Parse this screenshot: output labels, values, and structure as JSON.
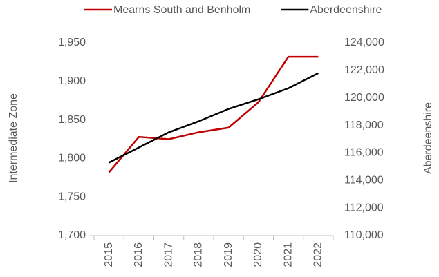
{
  "chart_data": {
    "type": "line",
    "y_label": "Intermediate Zone",
    "y2_label": "Aberdeenshire",
    "categories": [
      "2015",
      "2016",
      "2017",
      "2018",
      "2019",
      "2020",
      "2021",
      "2022"
    ],
    "series": [
      {
        "name": "Mearns South and Benholm",
        "color": "#c00000",
        "values": [
          1782,
          1828,
          1825,
          1834,
          1840,
          1873,
          1932,
          1932
        ]
      },
      {
        "name": "Aberdeenshire",
        "color": "#000000",
        "axis": "y2",
        "values": [
          115300,
          116400,
          117500,
          118300,
          119200,
          119900,
          120700,
          121800
        ]
      }
    ],
    "ylim": [
      1700,
      1950
    ],
    "yticks": [
      {
        "value": 1700,
        "label": "1,700"
      },
      {
        "value": 1750,
        "label": "1,750"
      },
      {
        "value": 1800,
        "label": "1,800"
      },
      {
        "value": 1850,
        "label": "1,850"
      },
      {
        "value": 1900,
        "label": "1,900"
      },
      {
        "value": 1950,
        "label": "1,950"
      }
    ],
    "y2lim": [
      110000,
      124000
    ],
    "y2ticks": [
      {
        "value": 110000,
        "label": "110,000"
      },
      {
        "value": 112000,
        "label": "112,000"
      },
      {
        "value": 114000,
        "label": "114,000"
      },
      {
        "value": 116000,
        "label": "116,000"
      },
      {
        "value": 118000,
        "label": "118,000"
      },
      {
        "value": 120000,
        "label": "120,000"
      },
      {
        "value": 122000,
        "label": "122,000"
      },
      {
        "value": 124000,
        "label": "124,000"
      }
    ],
    "legend": "top",
    "grid": false
  }
}
